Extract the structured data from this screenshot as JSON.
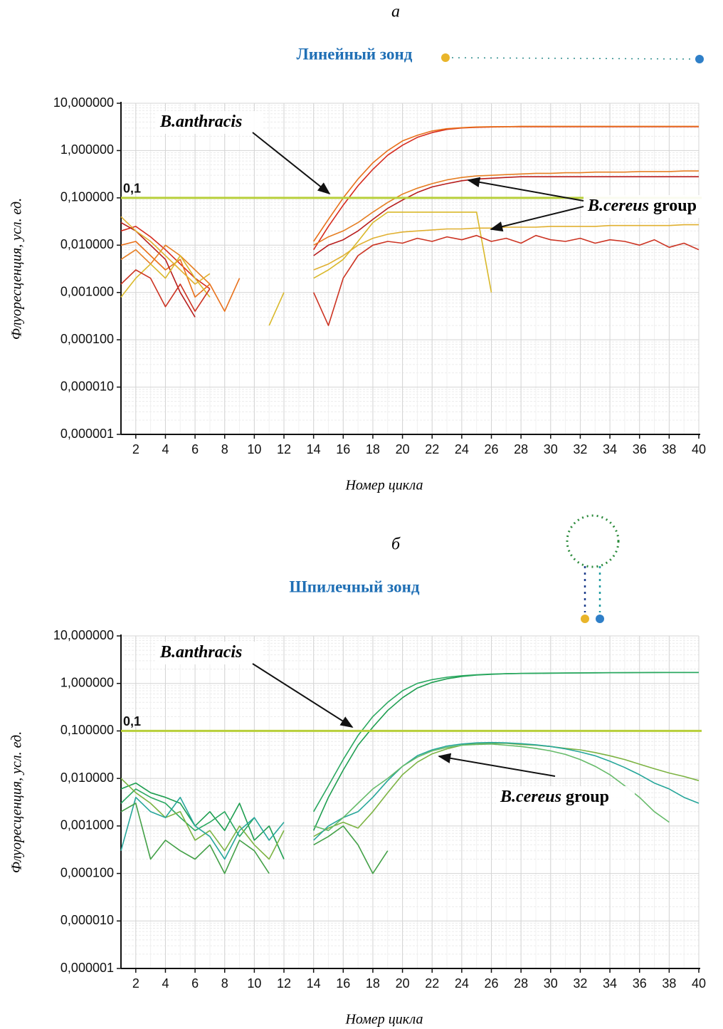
{
  "chart_data": [
    {
      "type": "line",
      "panel": "а",
      "title": "Линейный зонд",
      "xlabel": "Номер цикла",
      "ylabel": "Флуоресценция, усл. ед.",
      "log_y": true,
      "grid": true,
      "xlim": [
        1,
        40
      ],
      "xticks": [
        2,
        4,
        6,
        8,
        10,
        12,
        14,
        16,
        18,
        20,
        22,
        24,
        26,
        28,
        30,
        32,
        34,
        36,
        38,
        40
      ],
      "ylim": [
        1e-06,
        10
      ],
      "yticks": [
        {
          "value": 10,
          "label": "10,000000"
        },
        {
          "value": 1,
          "label": "1,000000"
        },
        {
          "value": 0.1,
          "label": "0,100000"
        },
        {
          "value": 0.01,
          "label": "0,010000"
        },
        {
          "value": 0.001,
          "label": "0,001000"
        },
        {
          "value": 0.0001,
          "label": "0,000100"
        },
        {
          "value": 1e-05,
          "label": "0,000010"
        },
        {
          "value": 1e-06,
          "label": "0,000001"
        }
      ],
      "threshold": {
        "value": 0.1,
        "label": "0,1",
        "color": "#b8cf3a"
      },
      "annotations": [
        {
          "text": [
            "B.anthracis"
          ]
        },
        {
          "text": [
            "B.cereus",
            "group"
          ]
        }
      ],
      "x": [
        1,
        2,
        3,
        4,
        5,
        6,
        7,
        8,
        9,
        10,
        11,
        12,
        13,
        14,
        15,
        16,
        17,
        18,
        19,
        20,
        21,
        22,
        23,
        24,
        25,
        26,
        27,
        28,
        29,
        30,
        31,
        32,
        33,
        34,
        35,
        36,
        37,
        38,
        39,
        40
      ],
      "series": [
        {
          "color": "#d62a1e",
          "values": [
            0.02,
            0.025,
            0.015,
            0.008,
            0.004,
            0.002,
            0.0012,
            null,
            null,
            null,
            null,
            null,
            null,
            0.008,
            0.025,
            0.07,
            0.18,
            0.4,
            0.8,
            1.3,
            1.9,
            2.4,
            2.8,
            3.0,
            3.1,
            3.15,
            3.2,
            3.2,
            3.2,
            3.2,
            3.2,
            3.2,
            3.2,
            3.2,
            3.2,
            3.2,
            3.2,
            3.2,
            3.2,
            3.2
          ]
        },
        {
          "color": "#e8701a",
          "values": [
            0.01,
            0.012,
            0.006,
            0.003,
            0.005,
            0.0008,
            0.0015,
            0.0004,
            0.002,
            null,
            null,
            null,
            null,
            0.012,
            0.035,
            0.1,
            0.25,
            0.55,
            1.0,
            1.6,
            2.1,
            2.6,
            2.9,
            3.05,
            3.15,
            3.2,
            3.2,
            3.25,
            3.25,
            3.25,
            3.25,
            3.25,
            3.25,
            3.25,
            3.25,
            3.25,
            3.25,
            3.25,
            3.25,
            3.25
          ]
        },
        {
          "color": "#b71c1c",
          "values": [
            0.03,
            0.02,
            0.01,
            0.005,
            0.001,
            0.0003,
            null,
            null,
            null,
            null,
            null,
            null,
            null,
            0.006,
            0.01,
            0.013,
            0.02,
            0.035,
            0.06,
            0.09,
            0.13,
            0.17,
            0.2,
            0.23,
            0.25,
            0.26,
            0.27,
            0.28,
            0.28,
            0.28,
            0.28,
            0.28,
            0.28,
            0.28,
            0.28,
            0.28,
            0.28,
            0.28,
            0.28,
            0.28
          ]
        },
        {
          "color": "#e67e22",
          "values": [
            0.005,
            0.008,
            0.004,
            0.01,
            0.006,
            0.003,
            0.0015,
            null,
            null,
            null,
            null,
            null,
            null,
            0.01,
            0.015,
            0.02,
            0.03,
            0.05,
            0.08,
            0.12,
            0.16,
            0.2,
            0.24,
            0.27,
            0.29,
            0.3,
            0.31,
            0.32,
            0.33,
            0.33,
            0.34,
            0.34,
            0.35,
            0.35,
            0.35,
            0.36,
            0.36,
            0.36,
            0.37,
            0.37
          ]
        },
        {
          "color": "#d9b82a",
          "values": [
            0.0008,
            0.002,
            0.004,
            0.002,
            0.006,
            0.002,
            0.0008,
            null,
            null,
            null,
            0.0002,
            0.001,
            null,
            0.002,
            0.003,
            0.005,
            0.012,
            0.03,
            0.05,
            0.05,
            0.05,
            0.05,
            0.05,
            0.05,
            0.05,
            0.001,
            null,
            null,
            null,
            null,
            null,
            null,
            null,
            null,
            null,
            null,
            null,
            null,
            null,
            null
          ]
        },
        {
          "color": "#cc3322",
          "values": [
            0.0015,
            0.003,
            0.002,
            0.0005,
            0.0015,
            0.0004,
            0.0012,
            null,
            null,
            null,
            null,
            null,
            null,
            0.001,
            0.0002,
            0.002,
            0.006,
            0.01,
            0.012,
            0.011,
            0.014,
            0.012,
            0.015,
            0.013,
            0.016,
            0.012,
            0.014,
            0.011,
            0.016,
            0.013,
            0.012,
            0.014,
            0.011,
            0.013,
            0.012,
            0.01,
            0.013,
            0.009,
            0.011,
            0.008
          ]
        },
        {
          "color": "#e0b030",
          "values": [
            0.04,
            0.02,
            0.012,
            0.006,
            0.003,
            0.0015,
            0.0025,
            null,
            null,
            null,
            null,
            null,
            null,
            0.003,
            0.004,
            0.006,
            0.01,
            0.014,
            0.017,
            0.019,
            0.02,
            0.021,
            0.022,
            0.022,
            0.023,
            0.023,
            0.024,
            0.024,
            0.024,
            0.025,
            0.025,
            0.025,
            0.025,
            0.026,
            0.026,
            0.026,
            0.026,
            0.026,
            0.027,
            0.027
          ]
        }
      ]
    },
    {
      "type": "line",
      "panel": "б",
      "title": "Шпилечный зонд",
      "xlabel": "Номер цикла",
      "ylabel": "Флуоресценция, усл. ед.",
      "log_y": true,
      "grid": true,
      "xlim": [
        1,
        40
      ],
      "xticks": [
        2,
        4,
        6,
        8,
        10,
        12,
        14,
        16,
        18,
        20,
        22,
        24,
        26,
        28,
        30,
        32,
        34,
        36,
        38,
        40
      ],
      "ylim": [
        1e-06,
        10
      ],
      "yticks": [
        {
          "value": 10,
          "label": "10,000000"
        },
        {
          "value": 1,
          "label": "1,000000"
        },
        {
          "value": 0.1,
          "label": "0,100000"
        },
        {
          "value": 0.01,
          "label": "0,010000"
        },
        {
          "value": 0.001,
          "label": "0,001000"
        },
        {
          "value": 0.0001,
          "label": "0,000100"
        },
        {
          "value": 1e-05,
          "label": "0,000010"
        },
        {
          "value": 1e-06,
          "label": "0,000001"
        }
      ],
      "threshold": {
        "value": 0.1,
        "label": "0,1",
        "color": "#b8cf3a"
      },
      "annotations": [
        {
          "text": [
            "B.anthracis"
          ]
        },
        {
          "text": [
            "B.cereus",
            "group"
          ]
        }
      ],
      "x": [
        1,
        2,
        3,
        4,
        5,
        6,
        7,
        8,
        9,
        10,
        11,
        12,
        13,
        14,
        15,
        16,
        17,
        18,
        19,
        20,
        21,
        22,
        23,
        24,
        25,
        26,
        27,
        28,
        29,
        30,
        31,
        32,
        33,
        34,
        35,
        36,
        37,
        38,
        39,
        40
      ],
      "series": [
        {
          "color": "#1e9e50",
          "values": [
            0.006,
            0.008,
            0.005,
            0.004,
            0.003,
            0.001,
            0.002,
            0.0008,
            0.003,
            0.0005,
            0.001,
            0.0002,
            null,
            0.0008,
            0.004,
            0.015,
            0.05,
            0.12,
            0.27,
            0.5,
            0.8,
            1.05,
            1.25,
            1.4,
            1.5,
            1.55,
            1.6,
            1.62,
            1.64,
            1.65,
            1.66,
            1.67,
            1.68,
            1.68,
            1.69,
            1.69,
            1.7,
            1.7,
            1.7,
            1.7
          ]
        },
        {
          "color": "#2aa860",
          "values": [
            0.003,
            0.006,
            0.004,
            0.003,
            0.0015,
            0.0008,
            0.0012,
            0.002,
            0.0006,
            0.0015,
            null,
            null,
            null,
            0.002,
            0.007,
            0.025,
            0.08,
            0.2,
            0.4,
            0.7,
            1.0,
            1.2,
            1.35,
            1.45,
            1.52,
            1.57,
            1.6,
            1.62,
            1.63,
            1.64,
            1.65,
            1.66,
            1.67,
            1.68,
            1.68,
            1.69,
            1.69,
            1.7,
            1.7,
            1.7
          ]
        },
        {
          "color": "#7cb342",
          "values": [
            0.01,
            0.005,
            0.003,
            0.0015,
            0.002,
            0.0005,
            0.0008,
            0.0003,
            0.001,
            0.0004,
            0.0002,
            0.0008,
            null,
            0.0006,
            0.0009,
            0.0012,
            0.0009,
            0.002,
            0.005,
            0.012,
            0.022,
            0.033,
            0.042,
            0.05,
            0.055,
            0.055,
            0.055,
            0.052,
            0.05,
            0.047,
            0.043,
            0.04,
            0.035,
            0.03,
            0.025,
            0.02,
            0.016,
            0.013,
            0.011,
            0.009
          ]
        },
        {
          "color": "#26a69a",
          "values": [
            0.0003,
            0.004,
            0.002,
            0.0015,
            0.004,
            0.001,
            0.0006,
            0.0002,
            0.0008,
            0.0015,
            0.0005,
            0.0012,
            null,
            0.0005,
            0.001,
            0.0015,
            0.002,
            0.004,
            0.009,
            0.018,
            0.03,
            0.04,
            0.048,
            0.053,
            0.056,
            0.057,
            0.056,
            0.054,
            0.051,
            0.047,
            0.042,
            0.036,
            0.03,
            0.023,
            0.017,
            0.012,
            0.008,
            0.006,
            0.004,
            0.003
          ]
        },
        {
          "color": "#43a047",
          "values": [
            0.002,
            0.003,
            0.0002,
            0.0005,
            0.0003,
            0.0002,
            0.0004,
            0.0001,
            0.0005,
            0.0003,
            0.0001,
            null,
            null,
            0.0004,
            0.0006,
            0.001,
            0.0004,
            0.0001,
            0.0003,
            null,
            null,
            null,
            null,
            null,
            null,
            null,
            null,
            null,
            null,
            null,
            null,
            null,
            null,
            null,
            null,
            null,
            null,
            null,
            null,
            null
          ]
        },
        {
          "color": "#66bb6a",
          "values": [
            null,
            null,
            null,
            null,
            null,
            null,
            null,
            null,
            null,
            null,
            null,
            null,
            null,
            0.001,
            0.0008,
            0.0015,
            0.003,
            0.006,
            0.01,
            0.018,
            0.028,
            0.038,
            0.045,
            0.05,
            0.052,
            0.053,
            0.05,
            0.047,
            0.043,
            0.038,
            0.032,
            0.025,
            0.018,
            0.012,
            0.007,
            0.004,
            0.002,
            0.0012,
            null,
            null
          ]
        }
      ]
    }
  ]
}
